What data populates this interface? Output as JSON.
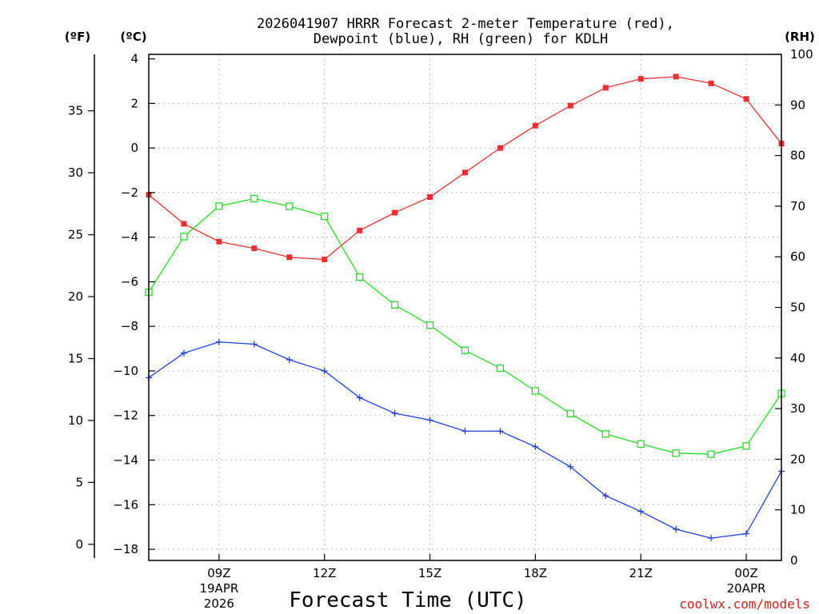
{
  "chart_data": {
    "type": "line",
    "title_line1": "2026041907 HRRR Forecast 2-meter Temperature (red),",
    "title_line2": "Dewpoint (blue), RH (green) for KDLH",
    "left_unit_f": "(ºF)",
    "left_unit_c": "(ºC)",
    "right_unit": "(RH)",
    "xlabel": "Forecast Time (UTC)",
    "credit": "coolwx.com/models",
    "x_hours": [
      7,
      8,
      9,
      10,
      11,
      12,
      13,
      14,
      15,
      16,
      17,
      18,
      19,
      20,
      21,
      22,
      23,
      24,
      25
    ],
    "xlim": [
      7,
      25
    ],
    "celsius_ylim": [
      -18.5,
      4.2
    ],
    "rh_ylim": [
      0,
      100
    ],
    "x_ticks": [
      {
        "hour": 9,
        "line1": "09Z",
        "line2": "19APR",
        "line3": "2026"
      },
      {
        "hour": 12,
        "line1": "12Z",
        "line2": "",
        "line3": ""
      },
      {
        "hour": 15,
        "line1": "15Z",
        "line2": "",
        "line3": ""
      },
      {
        "hour": 18,
        "line1": "18Z",
        "line2": "",
        "line3": ""
      },
      {
        "hour": 21,
        "line1": "21Z",
        "line2": "",
        "line3": ""
      },
      {
        "hour": 24,
        "line1": "00Z",
        "line2": "20APR",
        "line3": ""
      }
    ],
    "celsius_ticks": [
      4,
      2,
      0,
      -2,
      -4,
      -6,
      -8,
      -10,
      -12,
      -14,
      -16,
      -18
    ],
    "fahrenheit_ticks": [
      35,
      30,
      25,
      20,
      15,
      10,
      5,
      0
    ],
    "rh_ticks": [
      100,
      90,
      80,
      70,
      60,
      50,
      40,
      30,
      20,
      10,
      0
    ],
    "series": [
      {
        "name": "Temperature",
        "units": "C",
        "color": "#e83030",
        "marker": "filled-square",
        "values": [
          -2.1,
          -3.4,
          -4.2,
          -4.5,
          -4.9,
          -5.0,
          -3.7,
          -2.9,
          -2.2,
          -1.1,
          0.0,
          1.0,
          1.9,
          2.7,
          3.1,
          3.2,
          2.9,
          2.2,
          0.2
        ]
      },
      {
        "name": "Dewpoint",
        "units": "C",
        "color": "#2040e0",
        "marker": "plus",
        "values": [
          -10.3,
          -9.2,
          -8.7,
          -8.8,
          -9.5,
          -10.0,
          -11.2,
          -11.9,
          -12.2,
          -12.7,
          -12.7,
          -13.4,
          -14.3,
          -15.6,
          -16.3,
          -17.1,
          -17.5,
          -17.3,
          -14.5
        ]
      },
      {
        "name": "RH",
        "units": "%",
        "color": "#22dd22",
        "marker": "open-square",
        "values": [
          53,
          64,
          70,
          71.5,
          70,
          68,
          56,
          50.5,
          46.5,
          41.5,
          38,
          33.5,
          29,
          25,
          23,
          21.2,
          21,
          22.6,
          33
        ]
      }
    ]
  }
}
